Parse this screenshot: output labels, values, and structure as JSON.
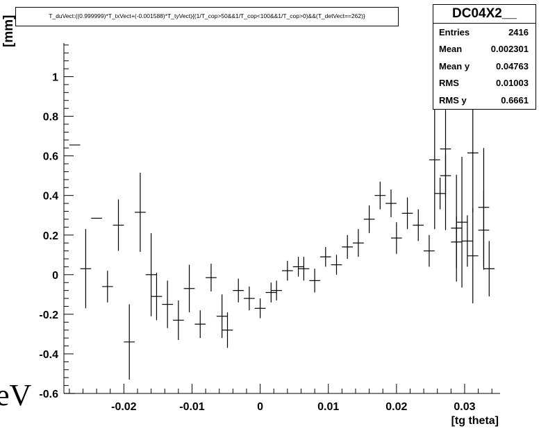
{
  "title": "T_duVect:((0.999999)*T_txVect+(-0.001588)*T_tyVect){(1/T_cop>50&&1/T_cop<100&&1/T_cop>0)&&(T_detVect==262)}",
  "stats": {
    "name": "DC04X2__",
    "rows": [
      {
        "label": "Entries",
        "value": "2416"
      },
      {
        "label": "Mean",
        "value": "0.002301"
      },
      {
        "label": "Mean y",
        "value": "0.04763"
      },
      {
        "label": "RMS",
        "value": "0.01003"
      },
      {
        "label": "RMS y",
        "value": "0.6661"
      }
    ]
  },
  "overlay_text": "eV",
  "chart_data": {
    "type": "scatter",
    "title": "T_duVect:((0.999999)*T_txVect+(-0.001588)*T_tyVect){(1/T_cop>50&&1/T_cop<100&&1/T_cop>0)&&(T_detVect==262)}",
    "xlabel": "[tg theta]",
    "ylabel": "[mm]",
    "xlim": [
      -0.0288,
      0.0352
    ],
    "ylim": [
      -0.6,
      1.17
    ],
    "xticks": [
      -0.02,
      -0.01,
      0,
      0.01,
      0.02,
      0.03
    ],
    "xtick_labels": [
      "-0.02",
      "-0.01",
      "0",
      "0.01",
      "0.02",
      "0.03"
    ],
    "yticks": [
      -0.6,
      -0.4,
      -0.2,
      0,
      0.2,
      0.4,
      0.6,
      0.8,
      1
    ],
    "ytick_labels": [
      "-0.6",
      "-0.4",
      "-0.2",
      "0",
      "0.2",
      "0.4",
      "0.6",
      "0.8",
      "1"
    ],
    "bin_half_width": 0.0008,
    "points": [
      {
        "x": -0.028,
        "y": -0.6,
        "err": 0.0
      },
      {
        "x": -0.0272,
        "y": 0.655,
        "err": 0.0
      },
      {
        "x": -0.0256,
        "y": 0.03,
        "err": 0.2
      },
      {
        "x": -0.024,
        "y": 0.285,
        "err": 0.0
      },
      {
        "x": -0.0224,
        "y": -0.06,
        "err": 0.08
      },
      {
        "x": -0.0208,
        "y": 0.25,
        "err": 0.13
      },
      {
        "x": -0.0192,
        "y": -0.34,
        "err": 0.19
      },
      {
        "x": -0.0176,
        "y": 0.315,
        "err": 0.2
      },
      {
        "x": -0.016,
        "y": 0.0,
        "err": 0.21
      },
      {
        "x": -0.0152,
        "y": -0.11,
        "err": 0.12
      },
      {
        "x": -0.0136,
        "y": -0.15,
        "err": 0.12
      },
      {
        "x": -0.012,
        "y": -0.23,
        "err": 0.1
      },
      {
        "x": -0.0104,
        "y": -0.07,
        "err": 0.12
      },
      {
        "x": -0.0088,
        "y": -0.25,
        "err": 0.07
      },
      {
        "x": -0.0072,
        "y": -0.015,
        "err": 0.07
      },
      {
        "x": -0.0056,
        "y": -0.21,
        "err": 0.11
      },
      {
        "x": -0.0048,
        "y": -0.28,
        "err": 0.09
      },
      {
        "x": -0.0032,
        "y": -0.08,
        "err": 0.06
      },
      {
        "x": -0.0016,
        "y": -0.12,
        "err": 0.06
      },
      {
        "x": 0.0,
        "y": -0.17,
        "err": 0.05
      },
      {
        "x": 0.0016,
        "y": -0.09,
        "err": 0.05
      },
      {
        "x": 0.0024,
        "y": -0.08,
        "err": 0.05
      },
      {
        "x": 0.004,
        "y": 0.02,
        "err": 0.05
      },
      {
        "x": 0.0056,
        "y": 0.04,
        "err": 0.05
      },
      {
        "x": 0.0064,
        "y": 0.03,
        "err": 0.06
      },
      {
        "x": 0.008,
        "y": -0.03,
        "err": 0.06
      },
      {
        "x": 0.0096,
        "y": 0.09,
        "err": 0.05
      },
      {
        "x": 0.0112,
        "y": 0.05,
        "err": 0.05
      },
      {
        "x": 0.0128,
        "y": 0.14,
        "err": 0.06
      },
      {
        "x": 0.0144,
        "y": 0.16,
        "err": 0.07
      },
      {
        "x": 0.016,
        "y": 0.28,
        "err": 0.07
      },
      {
        "x": 0.0176,
        "y": 0.4,
        "err": 0.07
      },
      {
        "x": 0.0192,
        "y": 0.36,
        "err": 0.07
      },
      {
        "x": 0.02,
        "y": 0.185,
        "err": 0.08
      },
      {
        "x": 0.0216,
        "y": 0.31,
        "err": 0.08
      },
      {
        "x": 0.0232,
        "y": 0.25,
        "err": 0.08
      },
      {
        "x": 0.0248,
        "y": 0.12,
        "err": 0.08
      },
      {
        "x": 0.0264,
        "y": 0.41,
        "err": 0.08
      },
      {
        "x": 0.0272,
        "y": 0.5,
        "err": 0.11
      },
      {
        "x": 0.0288,
        "y": 0.165,
        "err": 0.13
      },
      {
        "x": 0.0304,
        "y": 0.17,
        "err": 0.13
      },
      {
        "x": 0.0312,
        "y": 0.095,
        "err": 0.24
      },
      {
        "x": 0.0328,
        "y": 0.225,
        "err": 0.2
      },
      {
        "x": 0.0336,
        "y": 0.03,
        "err": 0.14
      }
    ],
    "points_right": [
      {
        "x": 0.0256,
        "y": 0.58,
        "err": 0.35
      },
      {
        "x": 0.0272,
        "y": 0.635,
        "err": 0.41
      },
      {
        "x": 0.0288,
        "y": 0.235,
        "err": 0.27
      },
      {
        "x": 0.0296,
        "y": 0.265,
        "err": 0.33
      },
      {
        "x": 0.0312,
        "y": 0.615,
        "err": 0.3
      },
      {
        "x": 0.0328,
        "y": 0.34,
        "err": 0.3
      }
    ]
  }
}
